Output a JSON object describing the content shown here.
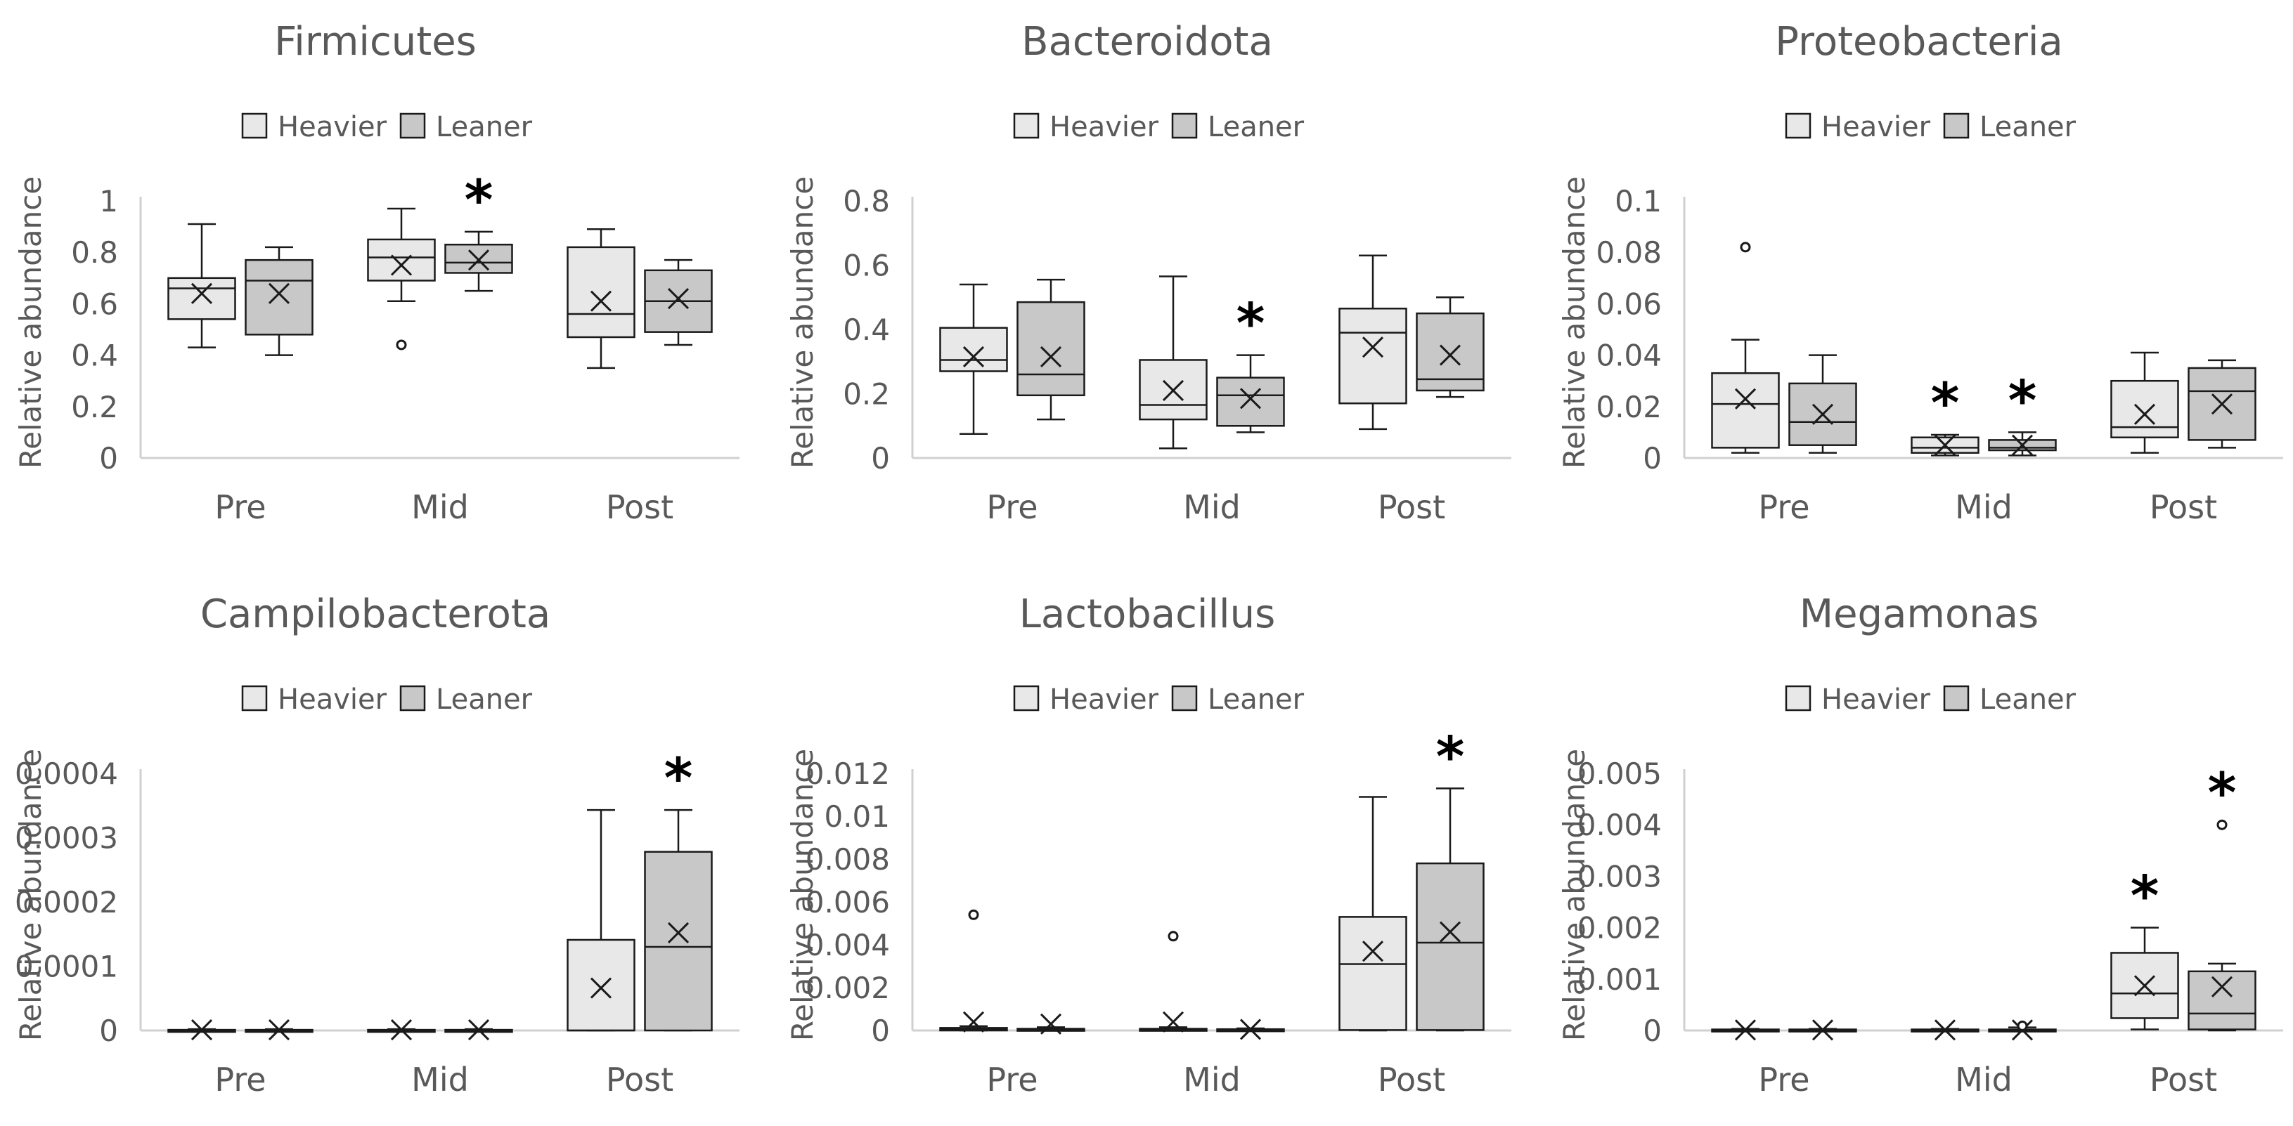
{
  "colors": {
    "heavier_fill": "#e8e8e8",
    "leaner_fill": "#c8c8c8",
    "stroke": "#1a1a1a",
    "axis": "#d0d0d0",
    "text": "#595959"
  },
  "legend": {
    "heavier": "Heavier",
    "leaner": "Leaner"
  },
  "chart_data": [
    {
      "type": "box",
      "title": "Firmicutes",
      "ylabel": "Relative abundance",
      "ylim": [
        0,
        1
      ],
      "yticks": [
        0,
        0.2,
        0.4,
        0.6,
        0.8,
        1
      ],
      "ytick_labels": [
        "0",
        "0.2",
        "0.4",
        "0.6",
        "0.8",
        "1"
      ],
      "categories": [
        "Pre",
        "Mid",
        "Post"
      ],
      "series": [
        {
          "name": "Heavier",
          "boxes": [
            {
              "min": 0.43,
              "q1": 0.54,
              "median": 0.66,
              "q3": 0.7,
              "max": 0.91,
              "mean": 0.64,
              "outliers": []
            },
            {
              "min": 0.61,
              "q1": 0.69,
              "median": 0.78,
              "q3": 0.85,
              "max": 0.97,
              "mean": 0.75,
              "outliers": [
                0.44
              ]
            },
            {
              "min": 0.35,
              "q1": 0.47,
              "median": 0.56,
              "q3": 0.82,
              "max": 0.89,
              "mean": 0.61,
              "outliers": []
            }
          ],
          "significant": [
            false,
            false,
            false
          ]
        },
        {
          "name": "Leaner",
          "boxes": [
            {
              "min": 0.4,
              "q1": 0.48,
              "median": 0.69,
              "q3": 0.77,
              "max": 0.82,
              "mean": 0.64,
              "outliers": []
            },
            {
              "min": 0.65,
              "q1": 0.72,
              "median": 0.76,
              "q3": 0.83,
              "max": 0.88,
              "mean": 0.77,
              "outliers": []
            },
            {
              "min": 0.44,
              "q1": 0.49,
              "median": 0.61,
              "q3": 0.73,
              "max": 0.77,
              "mean": 0.62,
              "outliers": []
            }
          ],
          "significant": [
            false,
            true,
            false
          ]
        }
      ]
    },
    {
      "type": "box",
      "title": "Bacteroidota",
      "ylabel": "Relative abundance",
      "ylim": [
        0,
        0.8
      ],
      "yticks": [
        0,
        0.2,
        0.4,
        0.6,
        0.8
      ],
      "ytick_labels": [
        "0",
        "0.2",
        "0.4",
        "0.6",
        "0.8"
      ],
      "categories": [
        "Pre",
        "Mid",
        "Post"
      ],
      "series": [
        {
          "name": "Heavier",
          "boxes": [
            {
              "min": 0.075,
              "q1": 0.27,
              "median": 0.305,
              "q3": 0.405,
              "max": 0.54,
              "mean": 0.315,
              "outliers": []
            },
            {
              "min": 0.03,
              "q1": 0.12,
              "median": 0.165,
              "q3": 0.305,
              "max": 0.565,
              "mean": 0.21,
              "outliers": []
            },
            {
              "min": 0.09,
              "q1": 0.17,
              "median": 0.39,
              "q3": 0.465,
              "max": 0.63,
              "mean": 0.345,
              "outliers": []
            }
          ],
          "significant": [
            false,
            false,
            false
          ]
        },
        {
          "name": "Leaner",
          "boxes": [
            {
              "min": 0.12,
              "q1": 0.195,
              "median": 0.26,
              "q3": 0.485,
              "max": 0.555,
              "mean": 0.315,
              "outliers": []
            },
            {
              "min": 0.08,
              "q1": 0.1,
              "median": 0.195,
              "q3": 0.25,
              "max": 0.32,
              "mean": 0.185,
              "outliers": []
            },
            {
              "min": 0.19,
              "q1": 0.21,
              "median": 0.245,
              "q3": 0.45,
              "max": 0.5,
              "mean": 0.32,
              "outliers": []
            }
          ],
          "significant": [
            false,
            true,
            false
          ]
        }
      ]
    },
    {
      "type": "box",
      "title": "Proteobacteria",
      "ylabel": "Relative abundance",
      "ylim": [
        0,
        0.1
      ],
      "yticks": [
        0,
        0.02,
        0.04,
        0.06,
        0.08,
        0.1
      ],
      "ytick_labels": [
        "0",
        "0.02",
        "0.04",
        "0.06",
        "0.08",
        "0.1"
      ],
      "categories": [
        "Pre",
        "Mid",
        "Post"
      ],
      "series": [
        {
          "name": "Heavier",
          "boxes": [
            {
              "min": 0.002,
              "q1": 0.004,
              "median": 0.021,
              "q3": 0.033,
              "max": 0.046,
              "mean": 0.023,
              "outliers": [
                0.082
              ]
            },
            {
              "min": 0.001,
              "q1": 0.002,
              "median": 0.004,
              "q3": 0.008,
              "max": 0.009,
              "mean": 0.005,
              "outliers": []
            },
            {
              "min": 0.002,
              "q1": 0.008,
              "median": 0.012,
              "q3": 0.03,
              "max": 0.041,
              "mean": 0.017,
              "outliers": []
            }
          ],
          "significant": [
            false,
            true,
            false
          ]
        },
        {
          "name": "Leaner",
          "boxes": [
            {
              "min": 0.002,
              "q1": 0.005,
              "median": 0.014,
              "q3": 0.029,
              "max": 0.04,
              "mean": 0.017,
              "outliers": []
            },
            {
              "min": 0.001,
              "q1": 0.003,
              "median": 0.004,
              "q3": 0.007,
              "max": 0.01,
              "mean": 0.005,
              "outliers": []
            },
            {
              "min": 0.004,
              "q1": 0.007,
              "median": 0.026,
              "q3": 0.035,
              "max": 0.038,
              "mean": 0.021,
              "outliers": []
            }
          ],
          "significant": [
            false,
            true,
            false
          ]
        }
      ]
    },
    {
      "type": "box",
      "title": "Campilobacterota",
      "ylabel": "Relative abundance",
      "ylim": [
        0,
        0.0004
      ],
      "yticks": [
        0,
        0.0001,
        0.0002,
        0.0003,
        0.0004
      ],
      "ytick_labels": [
        "0",
        "0.0001",
        "0.0002",
        "0.0003",
        "0.0004"
      ],
      "categories": [
        "Pre",
        "Mid",
        "Post"
      ],
      "series": [
        {
          "name": "Heavier",
          "boxes": [
            {
              "min": 0,
              "q1": 0,
              "median": 0,
              "q3": 1e-06,
              "max": 2e-06,
              "mean": 1e-06,
              "outliers": []
            },
            {
              "min": 0,
              "q1": 0,
              "median": 0,
              "q3": 1e-06,
              "max": 2e-06,
              "mean": 1e-06,
              "outliers": []
            },
            {
              "min": 0,
              "q1": 0,
              "median": 0,
              "q3": 0.000141,
              "max": 0.000343,
              "mean": 6.6e-05,
              "outliers": []
            }
          ],
          "significant": [
            false,
            false,
            false
          ]
        },
        {
          "name": "Leaner",
          "boxes": [
            {
              "min": 0,
              "q1": 0,
              "median": 0,
              "q3": 1e-06,
              "max": 2e-06,
              "mean": 1e-06,
              "outliers": []
            },
            {
              "min": 0,
              "q1": 0,
              "median": 0,
              "q3": 1e-06,
              "max": 2e-06,
              "mean": 1e-06,
              "outliers": []
            },
            {
              "min": 0,
              "q1": 0,
              "median": 0.00013,
              "q3": 0.000278,
              "max": 0.000343,
              "mean": 0.000152,
              "outliers": []
            }
          ],
          "significant": [
            false,
            false,
            true
          ]
        }
      ]
    },
    {
      "type": "box",
      "title": "Lactobacillus",
      "ylabel": "Relative abundance",
      "ylim": [
        0,
        0.012
      ],
      "yticks": [
        0,
        0.002,
        0.004,
        0.006,
        0.008,
        0.01,
        0.012
      ],
      "ytick_labels": [
        "0",
        "0.002",
        "0.004",
        "0.006",
        "0.008",
        "0.01",
        "0.012"
      ],
      "categories": [
        "Pre",
        "Mid",
        "Post"
      ],
      "series": [
        {
          "name": "Heavier",
          "boxes": [
            {
              "min": 0,
              "q1": 0,
              "median": 5e-05,
              "q3": 0.00012,
              "max": 0.0002,
              "mean": 0.0004,
              "outliers": [
                0.0054
              ]
            },
            {
              "min": 0,
              "q1": 0,
              "median": 3e-05,
              "q3": 8e-05,
              "max": 0.00015,
              "mean": 0.0004,
              "outliers": [
                0.0044
              ]
            },
            {
              "min": 0,
              "q1": 2e-05,
              "median": 0.0031,
              "q3": 0.0053,
              "max": 0.0109,
              "mean": 0.0037,
              "outliers": []
            }
          ],
          "significant": [
            false,
            false,
            false
          ]
        },
        {
          "name": "Leaner",
          "boxes": [
            {
              "min": 0,
              "q1": 0,
              "median": 3e-05,
              "q3": 8e-05,
              "max": 0.00015,
              "mean": 0.0003,
              "outliers": []
            },
            {
              "min": 0,
              "q1": 0,
              "median": 2e-05,
              "q3": 6e-05,
              "max": 0.0001,
              "mean": 5e-05,
              "outliers": []
            },
            {
              "min": 0,
              "q1": 2e-05,
              "median": 0.0041,
              "q3": 0.0078,
              "max": 0.0113,
              "mean": 0.0046,
              "outliers": []
            }
          ],
          "significant": [
            false,
            false,
            true
          ]
        }
      ]
    },
    {
      "type": "box",
      "title": "Megamonas",
      "ylabel": "Relative abundance",
      "ylim": [
        0,
        0.005
      ],
      "yticks": [
        0,
        0.001,
        0.002,
        0.003,
        0.004,
        0.005
      ],
      "ytick_labels": [
        "0",
        "0.001",
        "0.002",
        "0.003",
        "0.004",
        "0.005"
      ],
      "categories": [
        "Pre",
        "Mid",
        "Post"
      ],
      "series": [
        {
          "name": "Heavier",
          "boxes": [
            {
              "min": 0,
              "q1": 0,
              "median": 0,
              "q3": 2e-05,
              "max": 3e-05,
              "mean": 1e-05,
              "outliers": []
            },
            {
              "min": 0,
              "q1": 0,
              "median": 0,
              "q3": 2e-05,
              "max": 3e-05,
              "mean": 1e-05,
              "outliers": []
            },
            {
              "min": 2e-05,
              "q1": 0.00024,
              "median": 0.00072,
              "q3": 0.00151,
              "max": 0.002,
              "mean": 0.00087,
              "outliers": []
            }
          ],
          "significant": [
            false,
            false,
            true
          ]
        },
        {
          "name": "Leaner",
          "boxes": [
            {
              "min": 0,
              "q1": 0,
              "median": 0,
              "q3": 2e-05,
              "max": 3e-05,
              "mean": 1e-05,
              "outliers": []
            },
            {
              "min": 0,
              "q1": 0,
              "median": 0,
              "q3": 2e-05,
              "max": 6e-05,
              "mean": 1e-05,
              "outliers": [
                9e-05
              ]
            },
            {
              "min": 0,
              "q1": 2e-05,
              "median": 0.00033,
              "q3": 0.00115,
              "max": 0.0013,
              "mean": 0.00085,
              "outliers": [
                0.004
              ]
            }
          ],
          "significant": [
            false,
            false,
            true
          ]
        }
      ]
    }
  ]
}
